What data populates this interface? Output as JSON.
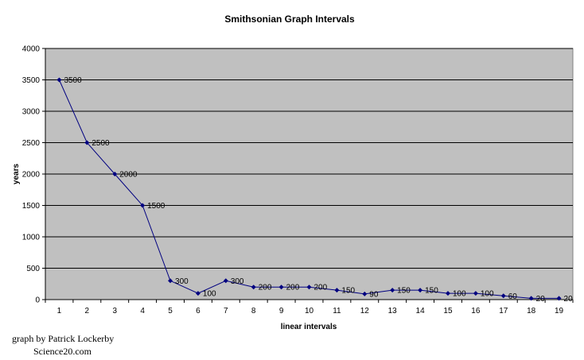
{
  "chart_data": {
    "type": "line",
    "title": "Smithsonian Graph Intervals",
    "xlabel": "linear intervals",
    "ylabel": "years",
    "x": [
      1,
      2,
      3,
      4,
      5,
      6,
      7,
      8,
      9,
      10,
      11,
      12,
      13,
      14,
      15,
      16,
      17,
      18,
      19
    ],
    "series": [
      {
        "values": [
          3500,
          2500,
          2000,
          1500,
          300,
          100,
          300,
          200,
          200,
          200,
          150,
          90,
          150,
          150,
          100,
          100,
          60,
          20,
          20
        ]
      }
    ],
    "data_labels": [
      "3500",
      "2500",
      "2000",
      "1500",
      "300",
      "100",
      "300",
      "200",
      "200",
      "200",
      "150",
      "90",
      "150",
      "150",
      "100",
      "100",
      "60",
      "20",
      "20"
    ],
    "ylim": [
      0,
      4000
    ],
    "yticks": [
      0,
      500,
      1000,
      1500,
      2000,
      2500,
      3000,
      3500,
      4000
    ],
    "grid": true,
    "legend": "none",
    "colors": {
      "plot_bg": "#c0c0c0",
      "line": "#000080",
      "grid": "#000000"
    }
  },
  "credit": {
    "line1": "graph by Patrick Lockerby",
    "line2": "Science20.com"
  }
}
